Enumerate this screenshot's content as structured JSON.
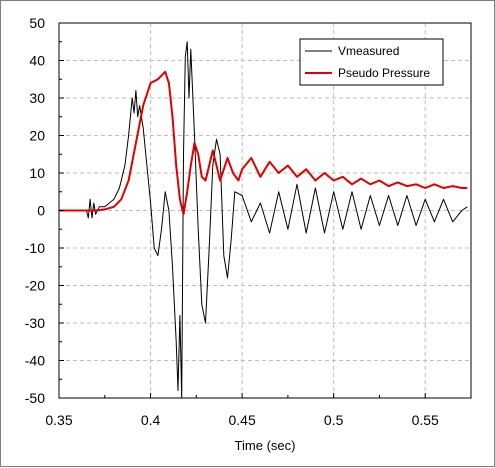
{
  "chart_data": {
    "type": "line",
    "title": "",
    "xlabel": "Time (sec)",
    "ylabel": "",
    "xlim": [
      0.35,
      0.575
    ],
    "ylim": [
      -50,
      50
    ],
    "xticks": [
      0.35,
      0.4,
      0.45,
      0.5,
      0.55
    ],
    "xtick_labels": [
      "0.35",
      "0.4",
      "0.45",
      "0.5",
      "0.55"
    ],
    "yticks": [
      -50,
      -40,
      -30,
      -20,
      -10,
      0,
      10,
      20,
      30,
      40,
      50
    ],
    "ytick_labels": [
      "-50",
      "-40",
      "-30",
      "-20",
      "-10",
      "0",
      "10",
      "20",
      "30",
      "40",
      "50"
    ],
    "grid": true,
    "legend_position": "top-right",
    "series": [
      {
        "name": "Vmeasured",
        "color": "#000000",
        "x": [
          0.35,
          0.365,
          0.366,
          0.367,
          0.368,
          0.369,
          0.37,
          0.372,
          0.375,
          0.38,
          0.383,
          0.386,
          0.388,
          0.39,
          0.391,
          0.392,
          0.393,
          0.394,
          0.396,
          0.398,
          0.4,
          0.402,
          0.404,
          0.406,
          0.408,
          0.41,
          0.412,
          0.414,
          0.415,
          0.416,
          0.417,
          0.418,
          0.419,
          0.42,
          0.421,
          0.422,
          0.424,
          0.426,
          0.428,
          0.43,
          0.432,
          0.434,
          0.436,
          0.438,
          0.44,
          0.442,
          0.444,
          0.446,
          0.45,
          0.455,
          0.46,
          0.465,
          0.47,
          0.475,
          0.48,
          0.485,
          0.49,
          0.495,
          0.5,
          0.505,
          0.51,
          0.515,
          0.52,
          0.525,
          0.53,
          0.535,
          0.54,
          0.545,
          0.55,
          0.555,
          0.56,
          0.565,
          0.57,
          0.573
        ],
        "y": [
          0,
          0,
          -2,
          3,
          -2,
          2,
          -1,
          1,
          1,
          3,
          6,
          12,
          20,
          30,
          26,
          32,
          25,
          28,
          22,
          12,
          2,
          -10,
          -12,
          -5,
          5,
          0,
          -15,
          -35,
          -48,
          -28,
          -50,
          15,
          41,
          45,
          30,
          43,
          20,
          -5,
          -25,
          -30,
          -10,
          12,
          19,
          15,
          -12,
          -18,
          -8,
          5,
          4,
          -3,
          2,
          -6,
          5,
          -5,
          7,
          -6,
          6,
          -6,
          5,
          -5,
          5,
          -5,
          4,
          -4,
          4,
          -4,
          4,
          -4,
          3,
          -3,
          3,
          -3,
          0,
          1
        ]
      },
      {
        "name": "Pseudo Pressure",
        "color": "#e00000",
        "x": [
          0.35,
          0.37,
          0.375,
          0.38,
          0.384,
          0.388,
          0.392,
          0.396,
          0.4,
          0.404,
          0.408,
          0.41,
          0.412,
          0.414,
          0.416,
          0.418,
          0.42,
          0.422,
          0.424,
          0.426,
          0.428,
          0.43,
          0.432,
          0.434,
          0.436,
          0.438,
          0.44,
          0.442,
          0.445,
          0.448,
          0.45,
          0.455,
          0.46,
          0.465,
          0.47,
          0.475,
          0.48,
          0.485,
          0.49,
          0.495,
          0.5,
          0.505,
          0.51,
          0.515,
          0.52,
          0.525,
          0.53,
          0.535,
          0.54,
          0.545,
          0.55,
          0.555,
          0.56,
          0.565,
          0.57,
          0.573
        ],
        "y": [
          0,
          0,
          0.3,
          1,
          3,
          8,
          18,
          28,
          34,
          35,
          37,
          34,
          25,
          12,
          3,
          -1,
          5,
          12,
          18,
          15,
          9,
          8,
          12,
          16,
          12,
          8,
          11,
          14,
          10,
          8,
          11,
          14,
          9,
          13,
          10,
          12,
          9,
          11,
          8,
          10,
          8,
          9,
          7,
          8.5,
          7,
          8,
          6.5,
          7.5,
          6.5,
          7,
          6,
          7,
          6,
          6.5,
          6,
          6
        ]
      }
    ]
  }
}
